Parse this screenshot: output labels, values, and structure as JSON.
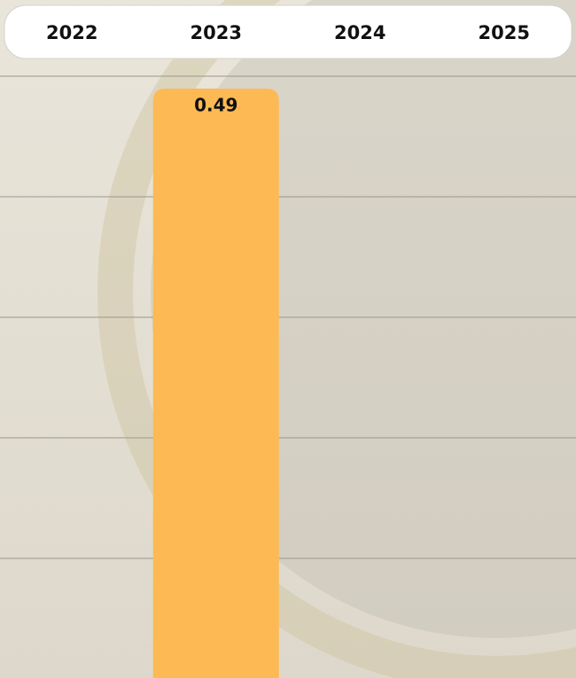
{
  "chart_data": {
    "type": "bar",
    "categories": [
      "2022",
      "2023",
      "2024",
      "2025"
    ],
    "values": [
      null,
      0.49,
      null,
      null
    ],
    "color": "#fdb954"
  }
}
